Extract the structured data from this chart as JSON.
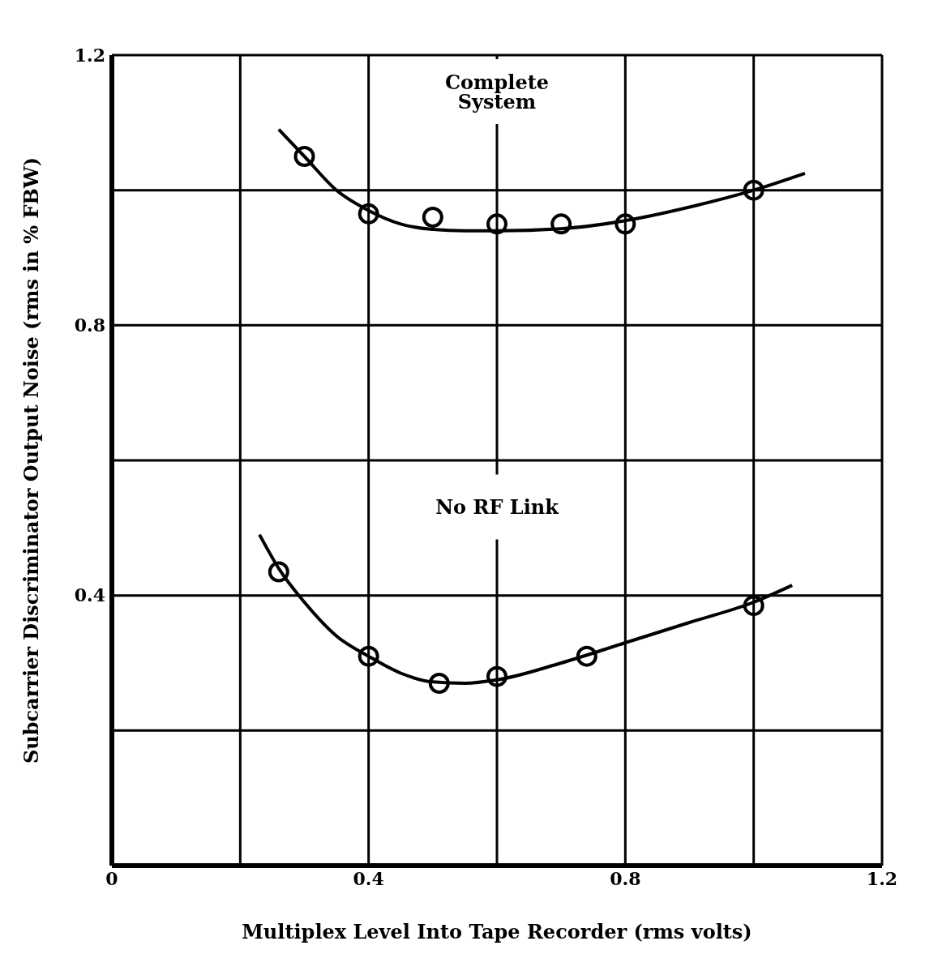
{
  "chart_data": {
    "type": "scatter",
    "xlabel": "Multiplex Level Into Tape Recorder (rms volts)",
    "ylabel": "Subcarrier Discriminator Output Noise (rms in % FBW)",
    "xlim": [
      0,
      1.2
    ],
    "ylim": [
      0,
      1.2
    ],
    "xticks": [
      0,
      {
        "value": 0.2,
        "label": null
      },
      0.4,
      {
        "value": 0.6,
        "label": null
      },
      0.8,
      {
        "value": 1.0,
        "label": null
      },
      1.2
    ],
    "yticks": [
      {
        "value": 0,
        "label": null
      },
      {
        "value": 0.2,
        "label": null
      },
      0.4,
      {
        "value": 0.6,
        "label": null
      },
      0.8,
      {
        "value": 1.0,
        "label": null
      },
      1.2
    ],
    "grid": true,
    "annotations": [
      "Complete System",
      "No RF Link"
    ],
    "series": [
      {
        "marker": "circle",
        "color": "#000000",
        "x": [
          0.3,
          0.4,
          0.5,
          0.6,
          0.7,
          0.8,
          1.0
        ],
        "values": [
          1.05,
          0.965,
          0.96,
          0.95,
          0.95,
          0.95,
          1.0
        ]
      },
      {
        "type": "line",
        "marker": "none",
        "color": "#000000",
        "x": [
          0.26,
          0.3,
          0.35,
          0.4,
          0.45,
          0.5,
          0.55,
          0.6,
          0.7,
          0.8,
          0.9,
          1.0,
          1.08
        ],
        "values": [
          1.09,
          1.05,
          1.0,
          0.97,
          0.95,
          0.942,
          0.94,
          0.94,
          0.943,
          0.955,
          0.975,
          1.0,
          1.025
        ]
      },
      {
        "marker": "circle",
        "color": "#000000",
        "x": [
          0.26,
          0.4,
          0.51,
          0.6,
          0.74,
          1.0
        ],
        "values": [
          0.435,
          0.31,
          0.27,
          0.28,
          0.31,
          0.385
        ]
      },
      {
        "type": "line",
        "marker": "none",
        "color": "#000000",
        "x": [
          0.23,
          0.26,
          0.3,
          0.35,
          0.4,
          0.45,
          0.5,
          0.55,
          0.6,
          0.7,
          0.8,
          0.9,
          1.0,
          1.06
        ],
        "values": [
          0.49,
          0.44,
          0.39,
          0.34,
          0.31,
          0.285,
          0.272,
          0.27,
          0.275,
          0.3,
          0.33,
          0.36,
          0.39,
          0.415
        ]
      }
    ]
  }
}
